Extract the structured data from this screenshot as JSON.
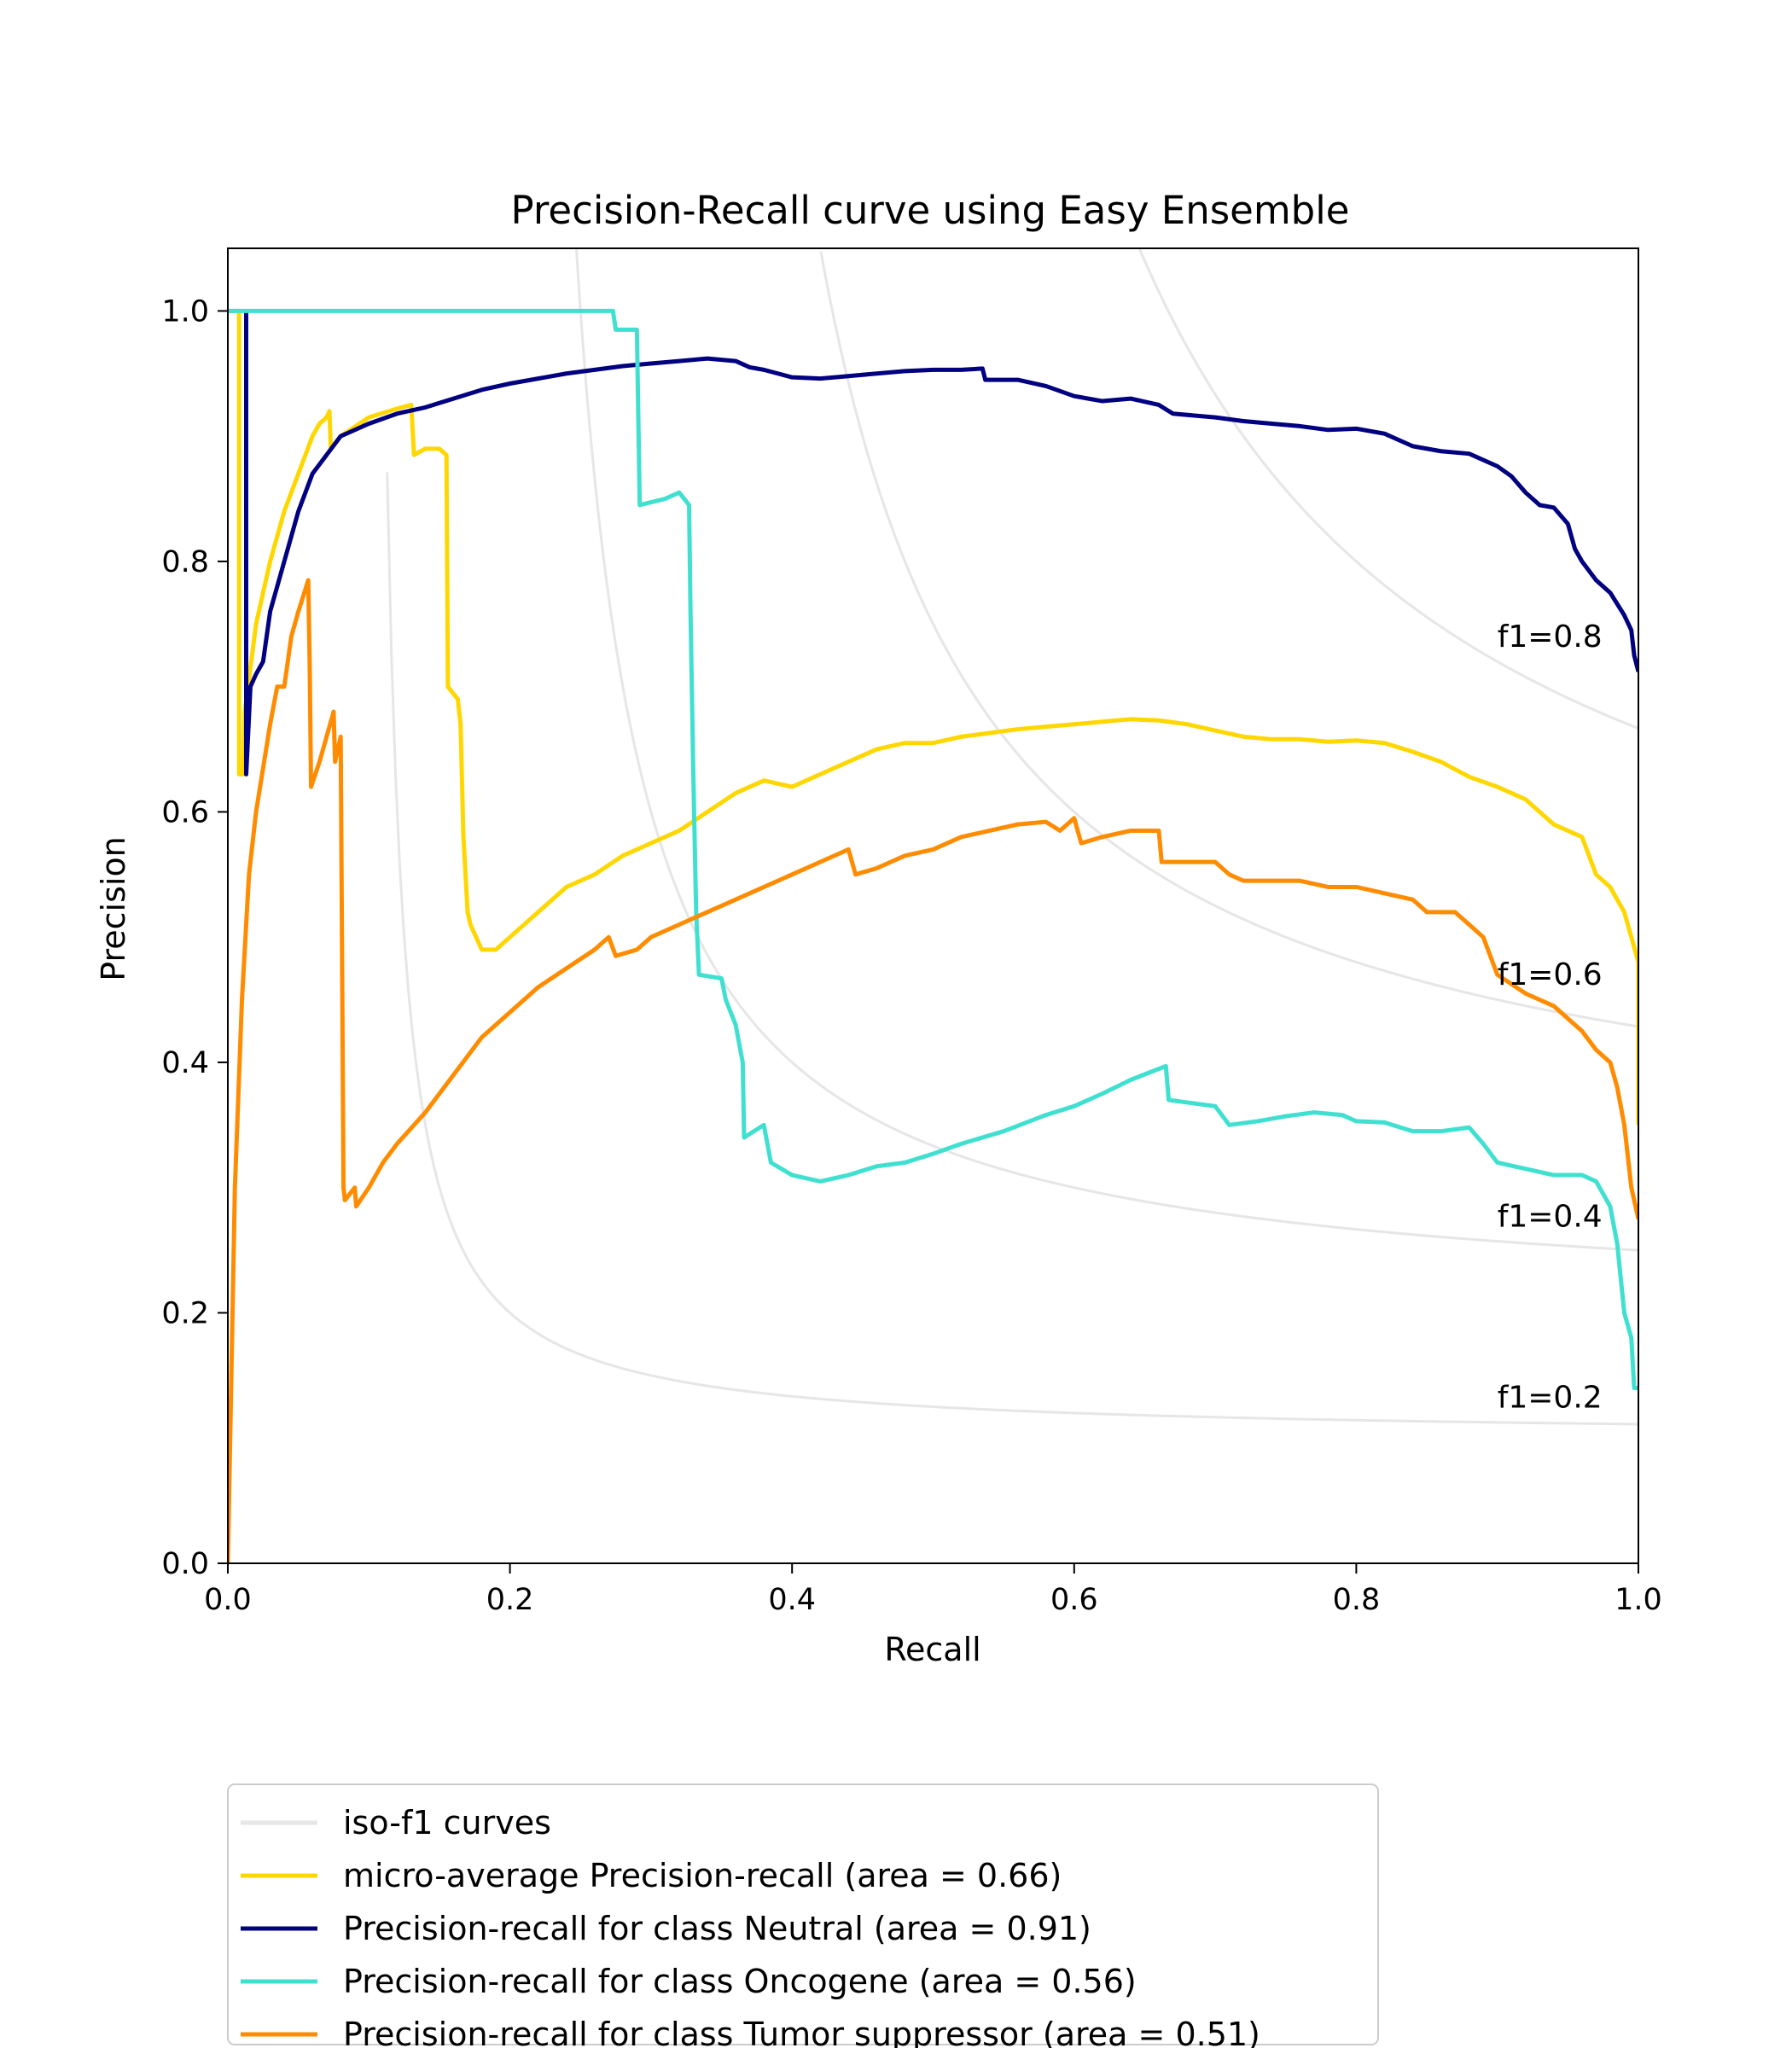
{
  "chart_data": {
    "type": "line",
    "title": "Precision-Recall curve using Easy Ensemble",
    "xlabel": "Recall",
    "ylabel": "Precision",
    "xlim": [
      0.0,
      1.0
    ],
    "ylim": [
      0.0,
      1.05
    ],
    "x_ticks": [
      "0.0",
      "0.2",
      "0.4",
      "0.6",
      "0.8",
      "1.0"
    ],
    "y_ticks": [
      "0.0",
      "0.2",
      "0.4",
      "0.6",
      "0.8",
      "1.0"
    ],
    "grid": false,
    "legend_position": "below-left",
    "iso_f1": {
      "legend_label": "iso-f1 curves",
      "color": "#e6e6e6",
      "values": [
        0.2,
        0.4,
        0.6,
        0.8
      ],
      "labels": [
        "f1=0.2",
        "f1=0.4",
        "f1=0.6",
        "f1=0.8"
      ]
    },
    "series": [
      {
        "name": "micro-average Precision-recall (area = 0.66)",
        "color": "#ffd700",
        "points": [
          [
            0.0,
            1.0
          ],
          [
            0.008,
            1.0
          ],
          [
            0.008,
            0.63
          ],
          [
            0.011,
            0.63
          ],
          [
            0.012,
            0.68
          ],
          [
            0.02,
            0.75
          ],
          [
            0.03,
            0.8
          ],
          [
            0.04,
            0.84
          ],
          [
            0.05,
            0.87
          ],
          [
            0.06,
            0.9
          ],
          [
            0.065,
            0.91
          ],
          [
            0.07,
            0.915
          ],
          [
            0.072,
            0.92
          ],
          [
            0.073,
            0.89
          ],
          [
            0.08,
            0.9
          ],
          [
            0.1,
            0.915
          ],
          [
            0.12,
            0.922
          ],
          [
            0.13,
            0.925
          ],
          [
            0.132,
            0.885
          ],
          [
            0.14,
            0.89
          ],
          [
            0.15,
            0.89
          ],
          [
            0.155,
            0.885
          ],
          [
            0.156,
            0.7
          ],
          [
            0.163,
            0.69
          ],
          [
            0.165,
            0.67
          ],
          [
            0.167,
            0.58
          ],
          [
            0.17,
            0.52
          ],
          [
            0.172,
            0.51
          ],
          [
            0.18,
            0.49
          ],
          [
            0.19,
            0.49
          ],
          [
            0.2,
            0.5
          ],
          [
            0.22,
            0.52
          ],
          [
            0.24,
            0.54
          ],
          [
            0.26,
            0.55
          ],
          [
            0.28,
            0.565
          ],
          [
            0.3,
            0.575
          ],
          [
            0.32,
            0.585
          ],
          [
            0.34,
            0.6
          ],
          [
            0.36,
            0.615
          ],
          [
            0.38,
            0.625
          ],
          [
            0.4,
            0.62
          ],
          [
            0.42,
            0.63
          ],
          [
            0.44,
            0.64
          ],
          [
            0.46,
            0.65
          ],
          [
            0.48,
            0.655
          ],
          [
            0.5,
            0.655
          ],
          [
            0.52,
            0.66
          ],
          [
            0.54,
            0.663
          ],
          [
            0.56,
            0.666
          ],
          [
            0.58,
            0.668
          ],
          [
            0.6,
            0.67
          ],
          [
            0.62,
            0.672
          ],
          [
            0.64,
            0.674
          ],
          [
            0.66,
            0.673
          ],
          [
            0.68,
            0.67
          ],
          [
            0.7,
            0.665
          ],
          [
            0.72,
            0.66
          ],
          [
            0.74,
            0.658
          ],
          [
            0.76,
            0.658
          ],
          [
            0.78,
            0.656
          ],
          [
            0.8,
            0.657
          ],
          [
            0.82,
            0.655
          ],
          [
            0.84,
            0.648
          ],
          [
            0.86,
            0.64
          ],
          [
            0.88,
            0.628
          ],
          [
            0.9,
            0.62
          ],
          [
            0.92,
            0.61
          ],
          [
            0.94,
            0.59
          ],
          [
            0.96,
            0.58
          ],
          [
            0.97,
            0.55
          ],
          [
            0.98,
            0.54
          ],
          [
            0.99,
            0.52
          ],
          [
            1.0,
            0.48
          ],
          [
            1.0,
            0.35
          ]
        ]
      },
      {
        "name": "Precision-recall for class Neutral (area = 0.91)",
        "color": "#000080",
        "points": [
          [
            0.013,
            1.0
          ],
          [
            0.013,
            0.63
          ],
          [
            0.016,
            0.7
          ],
          [
            0.02,
            0.71
          ],
          [
            0.025,
            0.72
          ],
          [
            0.03,
            0.76
          ],
          [
            0.04,
            0.8
          ],
          [
            0.05,
            0.84
          ],
          [
            0.06,
            0.87
          ],
          [
            0.07,
            0.885
          ],
          [
            0.08,
            0.9
          ],
          [
            0.1,
            0.91
          ],
          [
            0.12,
            0.918
          ],
          [
            0.14,
            0.923
          ],
          [
            0.16,
            0.93
          ],
          [
            0.18,
            0.937
          ],
          [
            0.2,
            0.942
          ],
          [
            0.22,
            0.946
          ],
          [
            0.24,
            0.95
          ],
          [
            0.26,
            0.953
          ],
          [
            0.28,
            0.956
          ],
          [
            0.3,
            0.958
          ],
          [
            0.32,
            0.96
          ],
          [
            0.34,
            0.962
          ],
          [
            0.36,
            0.96
          ],
          [
            0.37,
            0.955
          ],
          [
            0.38,
            0.953
          ],
          [
            0.39,
            0.95
          ],
          [
            0.4,
            0.947
          ],
          [
            0.42,
            0.946
          ],
          [
            0.44,
            0.948
          ],
          [
            0.46,
            0.95
          ],
          [
            0.48,
            0.952
          ],
          [
            0.5,
            0.953
          ],
          [
            0.52,
            0.953
          ],
          [
            0.535,
            0.954
          ],
          [
            0.537,
            0.945
          ],
          [
            0.56,
            0.945
          ],
          [
            0.58,
            0.94
          ],
          [
            0.6,
            0.932
          ],
          [
            0.62,
            0.928
          ],
          [
            0.64,
            0.93
          ],
          [
            0.66,
            0.925
          ],
          [
            0.67,
            0.918
          ],
          [
            0.7,
            0.915
          ],
          [
            0.72,
            0.912
          ],
          [
            0.74,
            0.91
          ],
          [
            0.76,
            0.908
          ],
          [
            0.78,
            0.905
          ],
          [
            0.8,
            0.906
          ],
          [
            0.82,
            0.902
          ],
          [
            0.84,
            0.892
          ],
          [
            0.86,
            0.888
          ],
          [
            0.88,
            0.886
          ],
          [
            0.9,
            0.876
          ],
          [
            0.91,
            0.868
          ],
          [
            0.92,
            0.855
          ],
          [
            0.93,
            0.845
          ],
          [
            0.94,
            0.843
          ],
          [
            0.95,
            0.83
          ],
          [
            0.955,
            0.81
          ],
          [
            0.96,
            0.8
          ],
          [
            0.97,
            0.785
          ],
          [
            0.98,
            0.775
          ],
          [
            0.99,
            0.757
          ],
          [
            0.995,
            0.745
          ],
          [
            0.997,
            0.725
          ],
          [
            1.0,
            0.712
          ]
        ]
      },
      {
        "name": "Precision-recall for class Oncogene (area = 0.56)",
        "color": "#40e0d0",
        "points": [
          [
            0.0,
            1.0
          ],
          [
            0.273,
            1.0
          ],
          [
            0.275,
            0.985
          ],
          [
            0.29,
            0.985
          ],
          [
            0.292,
            0.845
          ],
          [
            0.31,
            0.85
          ],
          [
            0.32,
            0.855
          ],
          [
            0.327,
            0.845
          ],
          [
            0.328,
            0.76
          ],
          [
            0.33,
            0.63
          ],
          [
            0.332,
            0.52
          ],
          [
            0.334,
            0.47
          ],
          [
            0.35,
            0.467
          ],
          [
            0.353,
            0.45
          ],
          [
            0.36,
            0.43
          ],
          [
            0.365,
            0.4
          ],
          [
            0.366,
            0.34
          ],
          [
            0.38,
            0.35
          ],
          [
            0.385,
            0.32
          ],
          [
            0.4,
            0.31
          ],
          [
            0.42,
            0.305
          ],
          [
            0.44,
            0.31
          ],
          [
            0.46,
            0.317
          ],
          [
            0.48,
            0.32
          ],
          [
            0.5,
            0.327
          ],
          [
            0.52,
            0.335
          ],
          [
            0.55,
            0.345
          ],
          [
            0.58,
            0.358
          ],
          [
            0.6,
            0.365
          ],
          [
            0.62,
            0.375
          ],
          [
            0.64,
            0.386
          ],
          [
            0.665,
            0.397
          ],
          [
            0.667,
            0.37
          ],
          [
            0.68,
            0.368
          ],
          [
            0.7,
            0.365
          ],
          [
            0.71,
            0.35
          ],
          [
            0.73,
            0.353
          ],
          [
            0.75,
            0.357
          ],
          [
            0.77,
            0.36
          ],
          [
            0.79,
            0.358
          ],
          [
            0.8,
            0.353
          ],
          [
            0.82,
            0.352
          ],
          [
            0.84,
            0.345
          ],
          [
            0.86,
            0.345
          ],
          [
            0.88,
            0.348
          ],
          [
            0.89,
            0.335
          ],
          [
            0.9,
            0.32
          ],
          [
            0.92,
            0.315
          ],
          [
            0.94,
            0.31
          ],
          [
            0.96,
            0.31
          ],
          [
            0.97,
            0.305
          ],
          [
            0.98,
            0.285
          ],
          [
            0.985,
            0.255
          ],
          [
            0.99,
            0.2
          ],
          [
            0.995,
            0.18
          ],
          [
            0.997,
            0.14
          ],
          [
            1.0,
            0.14
          ]
        ]
      },
      {
        "name": "Precision-recall for class Tumor suppressor (area = 0.51)",
        "color": "#ff8c00",
        "points": [
          [
            0.0,
            0.0
          ],
          [
            0.005,
            0.3
          ],
          [
            0.01,
            0.45
          ],
          [
            0.015,
            0.55
          ],
          [
            0.02,
            0.6
          ],
          [
            0.03,
            0.67
          ],
          [
            0.035,
            0.7
          ],
          [
            0.04,
            0.7
          ],
          [
            0.045,
            0.74
          ],
          [
            0.05,
            0.76
          ],
          [
            0.057,
            0.785
          ],
          [
            0.058,
            0.72
          ],
          [
            0.059,
            0.62
          ],
          [
            0.065,
            0.64
          ],
          [
            0.07,
            0.66
          ],
          [
            0.075,
            0.68
          ],
          [
            0.076,
            0.64
          ],
          [
            0.08,
            0.66
          ],
          [
            0.082,
            0.3
          ],
          [
            0.083,
            0.29
          ],
          [
            0.09,
            0.3
          ],
          [
            0.091,
            0.285
          ],
          [
            0.1,
            0.3
          ],
          [
            0.11,
            0.32
          ],
          [
            0.12,
            0.335
          ],
          [
            0.14,
            0.36
          ],
          [
            0.16,
            0.39
          ],
          [
            0.18,
            0.42
          ],
          [
            0.2,
            0.44
          ],
          [
            0.22,
            0.46
          ],
          [
            0.24,
            0.475
          ],
          [
            0.26,
            0.49
          ],
          [
            0.27,
            0.5
          ],
          [
            0.275,
            0.485
          ],
          [
            0.29,
            0.49
          ],
          [
            0.3,
            0.5
          ],
          [
            0.32,
            0.51
          ],
          [
            0.34,
            0.52
          ],
          [
            0.36,
            0.53
          ],
          [
            0.38,
            0.54
          ],
          [
            0.4,
            0.55
          ],
          [
            0.42,
            0.56
          ],
          [
            0.44,
            0.57
          ],
          [
            0.445,
            0.55
          ],
          [
            0.46,
            0.555
          ],
          [
            0.48,
            0.565
          ],
          [
            0.5,
            0.57
          ],
          [
            0.52,
            0.58
          ],
          [
            0.54,
            0.585
          ],
          [
            0.56,
            0.59
          ],
          [
            0.58,
            0.592
          ],
          [
            0.59,
            0.585
          ],
          [
            0.6,
            0.595
          ],
          [
            0.605,
            0.575
          ],
          [
            0.62,
            0.58
          ],
          [
            0.64,
            0.585
          ],
          [
            0.66,
            0.585
          ],
          [
            0.662,
            0.56
          ],
          [
            0.68,
            0.56
          ],
          [
            0.7,
            0.56
          ],
          [
            0.71,
            0.55
          ],
          [
            0.72,
            0.545
          ],
          [
            0.74,
            0.545
          ],
          [
            0.76,
            0.545
          ],
          [
            0.78,
            0.54
          ],
          [
            0.8,
            0.54
          ],
          [
            0.82,
            0.535
          ],
          [
            0.84,
            0.53
          ],
          [
            0.85,
            0.52
          ],
          [
            0.86,
            0.52
          ],
          [
            0.87,
            0.52
          ],
          [
            0.88,
            0.51
          ],
          [
            0.89,
            0.5
          ],
          [
            0.9,
            0.47
          ],
          [
            0.92,
            0.455
          ],
          [
            0.94,
            0.445
          ],
          [
            0.95,
            0.435
          ],
          [
            0.96,
            0.425
          ],
          [
            0.97,
            0.41
          ],
          [
            0.98,
            0.4
          ],
          [
            0.985,
            0.38
          ],
          [
            0.99,
            0.35
          ],
          [
            0.995,
            0.3
          ],
          [
            1.0,
            0.275
          ]
        ]
      }
    ]
  }
}
